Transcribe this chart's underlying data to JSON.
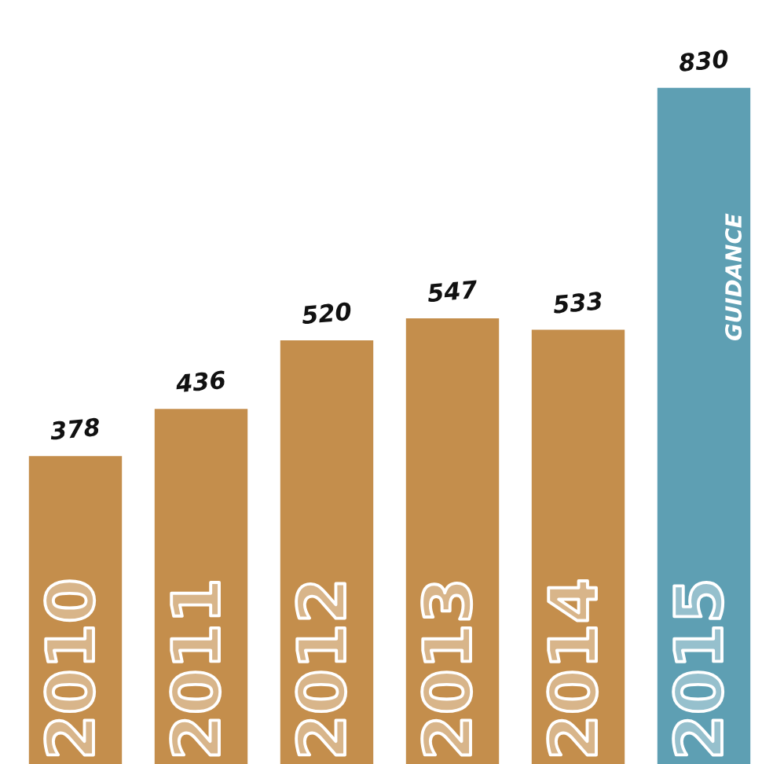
{
  "chart_data": {
    "type": "bar",
    "categories": [
      "2010",
      "2011",
      "2012",
      "2013",
      "2014",
      "2015"
    ],
    "values": [
      378,
      436,
      520,
      547,
      533,
      830
    ],
    "colors": [
      "#c48e4c",
      "#c48e4c",
      "#c48e4c",
      "#c48e4c",
      "#c48e4c",
      "#5e9fb3"
    ],
    "data_labels": true,
    "tick_labels": "x",
    "annotations": [
      "GUIDANCE"
    ]
  }
}
